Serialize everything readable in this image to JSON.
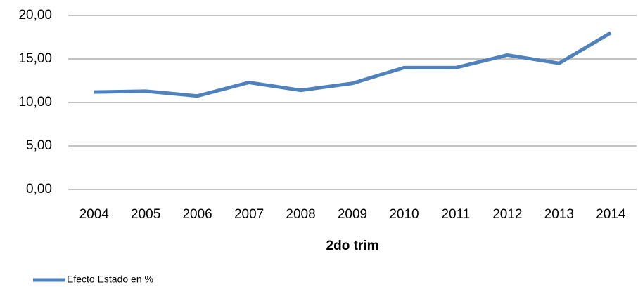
{
  "chart_data": {
    "type": "line",
    "x_label": "2do trim",
    "categories": [
      "2004",
      "2005",
      "2006",
      "2007",
      "2008",
      "2009",
      "2010",
      "2011",
      "2012",
      "2013",
      "2014"
    ],
    "series": [
      {
        "name": "Efecto Estado en %",
        "color": "#4f81bd",
        "values": [
          11.2,
          11.3,
          10.75,
          12.3,
          11.4,
          12.2,
          14.0,
          14.0,
          15.45,
          14.5,
          18.0
        ]
      }
    ],
    "ylim": [
      0,
      20
    ],
    "yticks": [
      {
        "value": 0,
        "label": "0,00"
      },
      {
        "value": 5,
        "label": "5,00"
      },
      {
        "value": 10,
        "label": "10,00"
      },
      {
        "value": 15,
        "label": "15,00"
      },
      {
        "value": 20,
        "label": "20,00"
      }
    ],
    "grid": true,
    "legend": "bottom-left"
  }
}
